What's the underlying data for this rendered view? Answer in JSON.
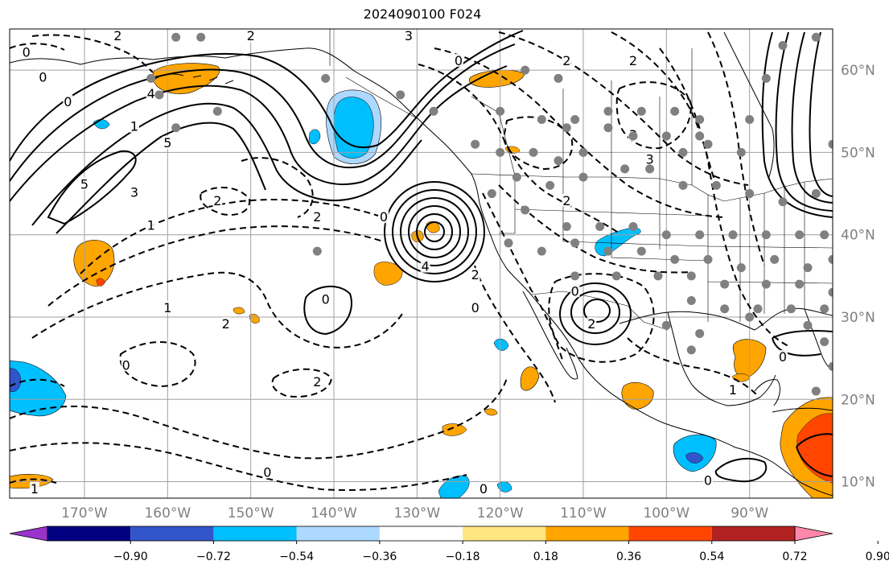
{
  "title": "2024090100 F024",
  "colors": {
    "background": "#ffffff",
    "grid": "#a0a0a0",
    "coast": "#000000",
    "station": "#808080",
    "tick_label": "#808080"
  },
  "map": {
    "lon_range": [
      -179,
      -80
    ],
    "lat_range": [
      8,
      65
    ],
    "lon_ticks": [
      {
        "value": -170,
        "label": "170°W"
      },
      {
        "value": -160,
        "label": "160°W"
      },
      {
        "value": -150,
        "label": "150°W"
      },
      {
        "value": -140,
        "label": "140°W"
      },
      {
        "value": -130,
        "label": "130°W"
      },
      {
        "value": -120,
        "label": "120°W"
      },
      {
        "value": -110,
        "label": "110°W"
      },
      {
        "value": -100,
        "label": "100°W"
      },
      {
        "value": -90,
        "label": "90°W"
      }
    ],
    "lat_ticks": [
      {
        "value": 60,
        "label": "60°N"
      },
      {
        "value": 50,
        "label": "50°N"
      },
      {
        "value": 40,
        "label": "40°N"
      },
      {
        "value": 30,
        "label": "30°N"
      },
      {
        "value": 20,
        "label": "20°N"
      },
      {
        "value": 10,
        "label": "10°N"
      }
    ],
    "contour_labels": [
      {
        "text": "2",
        "lon": -166,
        "lat": 64
      },
      {
        "text": "2",
        "lon": -150,
        "lat": 64
      },
      {
        "text": "3",
        "lon": -131,
        "lat": 64
      },
      {
        "text": "0",
        "lon": -177,
        "lat": 62
      },
      {
        "text": "0",
        "lon": -175,
        "lat": 59
      },
      {
        "text": "0",
        "lon": -172,
        "lat": 56
      },
      {
        "text": "4",
        "lon": -162,
        "lat": 57
      },
      {
        "text": "5",
        "lon": -160,
        "lat": 51
      },
      {
        "text": "1",
        "lon": -164,
        "lat": 53
      },
      {
        "text": "5",
        "lon": -170,
        "lat": 46
      },
      {
        "text": "3",
        "lon": -164,
        "lat": 45
      },
      {
        "text": "1",
        "lon": -162,
        "lat": 41
      },
      {
        "text": "2",
        "lon": -154,
        "lat": 44
      },
      {
        "text": "2",
        "lon": -142,
        "lat": 42
      },
      {
        "text": "0",
        "lon": -125,
        "lat": 61
      },
      {
        "text": "2",
        "lon": -112,
        "lat": 61
      },
      {
        "text": "2",
        "lon": -104,
        "lat": 61
      },
      {
        "text": "3",
        "lon": -104,
        "lat": 52
      },
      {
        "text": "3",
        "lon": -102,
        "lat": 49
      },
      {
        "text": "2",
        "lon": -112,
        "lat": 44
      },
      {
        "text": "0",
        "lon": -134,
        "lat": 42
      },
      {
        "text": "4",
        "lon": -129,
        "lat": 36
      },
      {
        "text": "0",
        "lon": -141,
        "lat": 32
      },
      {
        "text": "0",
        "lon": -111,
        "lat": 33
      },
      {
        "text": "2",
        "lon": -109,
        "lat": 29
      },
      {
        "text": "2",
        "lon": -153,
        "lat": 29
      },
      {
        "text": "1",
        "lon": -160,
        "lat": 31
      },
      {
        "text": "0",
        "lon": -165,
        "lat": 24
      },
      {
        "text": "2",
        "lon": -142,
        "lat": 22
      },
      {
        "text": "0",
        "lon": -148,
        "lat": 11
      },
      {
        "text": "0",
        "lon": -122,
        "lat": 9
      },
      {
        "text": "0",
        "lon": -86,
        "lat": 25
      },
      {
        "text": "1",
        "lon": -92,
        "lat": 21
      },
      {
        "text": "0",
        "lon": -95,
        "lat": 10
      },
      {
        "text": "1",
        "lon": -176,
        "lat": 9
      },
      {
        "text": "0",
        "lon": -123,
        "lat": 31
      },
      {
        "text": "2",
        "lon": -123,
        "lat": 35
      }
    ],
    "stations": [
      [
        -159,
        64
      ],
      [
        -156,
        64
      ],
      [
        -162,
        59
      ],
      [
        -161,
        57
      ],
      [
        -159,
        53
      ],
      [
        -154,
        55
      ],
      [
        -141,
        59
      ],
      [
        -132,
        57
      ],
      [
        -128,
        55
      ],
      [
        -117,
        60
      ],
      [
        -113,
        59
      ],
      [
        -120,
        55
      ],
      [
        -115,
        54
      ],
      [
        -111,
        54
      ],
      [
        -107,
        55
      ],
      [
        -103,
        55
      ],
      [
        -99,
        55
      ],
      [
        -96,
        54
      ],
      [
        -112,
        53
      ],
      [
        -107,
        53
      ],
      [
        -104,
        52
      ],
      [
        -100,
        52
      ],
      [
        -96,
        52
      ],
      [
        -123,
        51
      ],
      [
        -120,
        50
      ],
      [
        -116,
        50
      ],
      [
        -113,
        49
      ],
      [
        -110,
        50
      ],
      [
        -105,
        48
      ],
      [
        -98,
        50
      ],
      [
        -95,
        51
      ],
      [
        -91,
        50
      ],
      [
        -90,
        54
      ],
      [
        -88,
        59
      ],
      [
        -86,
        63
      ],
      [
        -82,
        64
      ],
      [
        -80,
        51
      ],
      [
        -118,
        47
      ],
      [
        -114,
        46
      ],
      [
        -110,
        47
      ],
      [
        -102,
        48
      ],
      [
        -98,
        46
      ],
      [
        -94,
        46
      ],
      [
        -90,
        45
      ],
      [
        -86,
        44
      ],
      [
        -82,
        45
      ],
      [
        -121,
        45
      ],
      [
        -117,
        43
      ],
      [
        -112,
        41
      ],
      [
        -108,
        41
      ],
      [
        -104,
        41
      ],
      [
        -100,
        40
      ],
      [
        -96,
        40
      ],
      [
        -92,
        40
      ],
      [
        -88,
        40
      ],
      [
        -84,
        40
      ],
      [
        -81,
        40
      ],
      [
        -119,
        39
      ],
      [
        -115,
        38
      ],
      [
        -111,
        39
      ],
      [
        -107,
        38
      ],
      [
        -103,
        38
      ],
      [
        -99,
        37
      ],
      [
        -95,
        37
      ],
      [
        -91,
        36
      ],
      [
        -87,
        37
      ],
      [
        -83,
        36
      ],
      [
        -80,
        37
      ],
      [
        -111,
        35
      ],
      [
        -106,
        35
      ],
      [
        -101,
        35
      ],
      [
        -97,
        35
      ],
      [
        -93,
        34
      ],
      [
        -88,
        34
      ],
      [
        -84,
        34
      ],
      [
        -80,
        33
      ],
      [
        -97,
        32
      ],
      [
        -93,
        31
      ],
      [
        -89,
        31
      ],
      [
        -85,
        31
      ],
      [
        -81,
        31
      ],
      [
        -100,
        29
      ],
      [
        -96,
        28
      ],
      [
        -90,
        30
      ],
      [
        -83,
        29
      ],
      [
        -97,
        26
      ],
      [
        -81,
        27
      ],
      [
        -80,
        24
      ],
      [
        -82,
        21
      ],
      [
        -142,
        38
      ]
    ]
  },
  "colorbar": {
    "colors": [
      "#9933cc",
      "#000080",
      "#3355cc",
      "#00bfff",
      "#add8ff",
      "#ffffff",
      "#ffe680",
      "#ffa500",
      "#ff4500",
      "#b22222",
      "#ff88aa"
    ],
    "tick_labels": [
      "−0.90",
      "−0.72",
      "−0.54",
      "−0.36",
      "−0.18",
      "0.18",
      "0.36",
      "0.54",
      "0.72",
      "0.90"
    ]
  }
}
